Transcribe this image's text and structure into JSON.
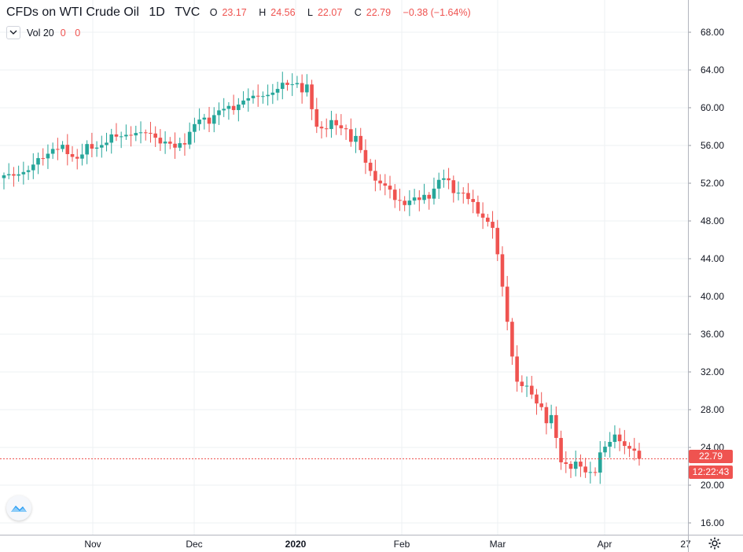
{
  "legend": {
    "symbol": "CFDs on WTI Crude Oil",
    "interval": "1D",
    "exchange": "TVC",
    "open_key": "O",
    "open": "23.17",
    "high_key": "H",
    "high": "24.56",
    "low_key": "L",
    "low": "22.07",
    "close_key": "C",
    "close": "22.79",
    "change": "−0.38 (−1.64%)"
  },
  "volume": {
    "label": "Vol 20",
    "value1": "0",
    "value2": "0"
  },
  "price_axis": {
    "ticks": [
      "68.00",
      "64.00",
      "60.00",
      "56.00",
      "52.00",
      "48.00",
      "44.00",
      "40.00",
      "36.00",
      "32.00",
      "28.00",
      "24.00",
      "20.00",
      "16.00"
    ]
  },
  "time_axis": {
    "labels": [
      "Nov",
      "Dec",
      "2020",
      "Feb",
      "Mar",
      "Apr",
      "27"
    ]
  },
  "badges": {
    "last_price": "22.79",
    "countdown": "12:22:43"
  },
  "colors": {
    "up": "#26a69a",
    "down": "#ef5350",
    "grid": "#eef0f3",
    "axis_text": "#131722"
  },
  "icons": {
    "logo": "tradingview-logo-icon",
    "settings": "gear-icon",
    "collapse": "chevron-down-icon"
  },
  "chart_data": {
    "type": "candlestick",
    "title": "CFDs on WTI Crude Oil",
    "ylim": [
      14.5,
      71.2
    ],
    "y_ticks": [
      68,
      64,
      60,
      56,
      52,
      48,
      44,
      40,
      36,
      32,
      28,
      24,
      20,
      16
    ],
    "x_labels": [
      "Nov",
      "Dec",
      "2020",
      "Feb",
      "Mar",
      "Apr",
      "27"
    ],
    "last_price": 22.79,
    "ohlc_anchors": [
      {
        "x": "Oct-09",
        "close": 52.6
      },
      {
        "x": "Oct-16",
        "close": 53.4
      },
      {
        "x": "Oct-23",
        "close": 55.9
      },
      {
        "x": "Oct-30",
        "close": 55.0
      },
      {
        "x": "Nov-06",
        "close": 56.4
      },
      {
        "x": "Nov-13",
        "close": 57.3
      },
      {
        "x": "Nov-20",
        "close": 57.2
      },
      {
        "x": "Nov-27",
        "close": 55.5
      },
      {
        "x": "Dec-04",
        "close": 58.4
      },
      {
        "x": "Dec-11",
        "close": 59.6
      },
      {
        "x": "Dec-18",
        "close": 60.9
      },
      {
        "x": "Dec-25",
        "close": 61.7
      },
      {
        "x": "Jan-07",
        "close": 63.2
      },
      {
        "x": "Jan-14",
        "close": 58.1
      },
      {
        "x": "Jan-21",
        "close": 58.2
      },
      {
        "x": "Jan-28",
        "close": 53.4
      },
      {
        "x": "Feb-04",
        "close": 50.1
      },
      {
        "x": "Feb-11",
        "close": 50.0
      },
      {
        "x": "Feb-18",
        "close": 52.3
      },
      {
        "x": "Feb-25",
        "close": 50.2
      },
      {
        "x": "Mar-03",
        "close": 47.3
      },
      {
        "x": "Mar-09",
        "close": 31.1
      },
      {
        "x": "Mar-16",
        "close": 28.7
      },
      {
        "x": "Mar-20",
        "close": 22.4
      },
      {
        "x": "Mar-27",
        "close": 21.5
      },
      {
        "x": "Apr-02",
        "close": 25.3
      },
      {
        "x": "Apr-09",
        "close": 22.79
      }
    ]
  }
}
